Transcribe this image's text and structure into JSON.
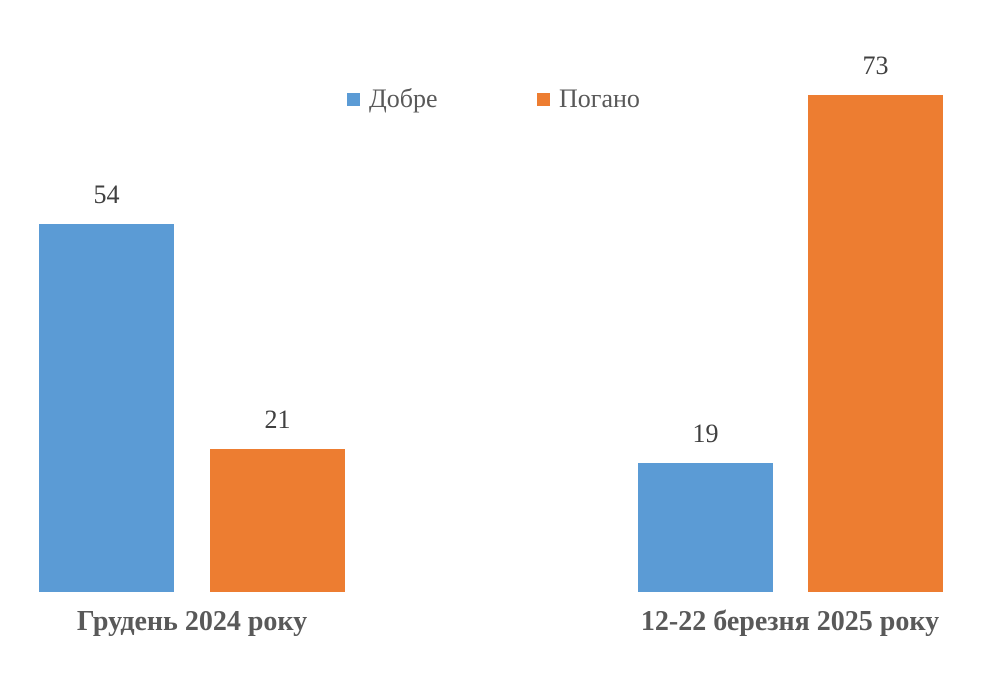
{
  "chart_data": {
    "type": "bar",
    "categories": [
      "Грудень 2024 року",
      "12-22 березня 2025 року"
    ],
    "series": [
      {
        "name": "Добре",
        "color": "#5B9BD5",
        "values": [
          54,
          19
        ]
      },
      {
        "name": "Погано",
        "color": "#ED7D31",
        "values": [
          21,
          73
        ]
      }
    ],
    "title": "",
    "xlabel": "",
    "ylabel": "",
    "ylim": [
      0,
      80
    ],
    "grid": false,
    "legend_position": "top",
    "data_labels": true,
    "axis_lines": false
  },
  "legend": {
    "items": [
      {
        "label": "Добре",
        "color": "#5B9BD5"
      },
      {
        "label": "Погано",
        "color": "#ED7D31"
      }
    ]
  },
  "colors": {
    "background": "#ffffff",
    "blue_series": "#5B9BD5",
    "orange_series": "#ED7D31",
    "value_label_text": "#404040",
    "category_label_text": "#595959",
    "legend_text": "#595959"
  }
}
